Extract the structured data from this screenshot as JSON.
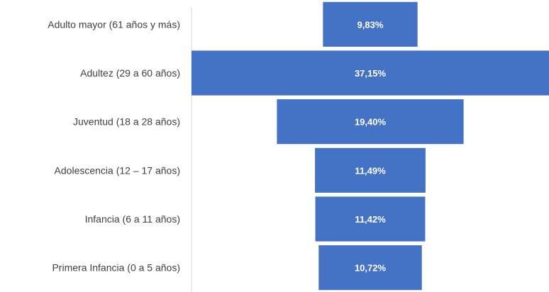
{
  "chart_data": {
    "type": "bar",
    "orientation": "horizontal-centered-funnel",
    "categories": [
      "Adulto mayor (61 años y más)",
      "Adultez (29 a 60 años)",
      "Juventud (18 a 28 años)",
      "Adolescencia (12 – 17 años)",
      "Infancia (6 a 11 años)",
      "Primera Infancia (0 a 5 años)"
    ],
    "values": [
      9.83,
      37.15,
      19.4,
      11.49,
      11.42,
      10.72
    ],
    "value_labels": [
      "9,83%",
      "37,15%",
      "19,40%",
      "11,49%",
      "11,42%",
      "10,72%"
    ],
    "title": "",
    "xlabel": "",
    "ylabel": "",
    "xlim": [
      0,
      37.15
    ],
    "grid": false,
    "legend": "none",
    "colors": {
      "bar": "#4472c4",
      "bar_label": "#ffffff",
      "category_label": "#404040",
      "axis_line": "#d9d9d9"
    }
  }
}
